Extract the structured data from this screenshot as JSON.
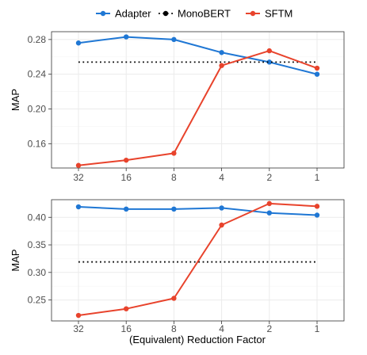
{
  "chart_data": [
    {
      "type": "line",
      "x": [
        "32",
        "16",
        "8",
        "4",
        "2",
        "1"
      ],
      "xlabel": "",
      "ylabel": "MAP",
      "ylim": [
        0.132,
        0.289
      ],
      "yticks": [
        "0.16",
        "0.20",
        "0.24",
        "0.28"
      ],
      "ytick_values": [
        0.16,
        0.2,
        0.24,
        0.28
      ],
      "grid": true,
      "series": [
        {
          "name": "Adapter",
          "color": "#1f77d4",
          "style": "solid",
          "values": [
            0.276,
            0.283,
            0.28,
            0.265,
            0.254,
            0.24
          ]
        },
        {
          "name": "MonoBERT",
          "color": "#000000",
          "style": "dotted",
          "values": [
            0.254,
            0.254,
            0.254,
            0.254,
            0.254,
            0.254
          ]
        },
        {
          "name": "SFTM",
          "color": "#e8432c",
          "style": "solid",
          "values": [
            0.135,
            0.141,
            0.149,
            0.25,
            0.267,
            0.247
          ]
        }
      ]
    },
    {
      "type": "line",
      "x": [
        "32",
        "16",
        "8",
        "4",
        "2",
        "1"
      ],
      "xlabel": "(Equivalent) Reduction Factor",
      "ylabel": "MAP",
      "ylim": [
        0.212,
        0.432
      ],
      "yticks": [
        "0.25",
        "0.30",
        "0.35",
        "0.40"
      ],
      "ytick_values": [
        0.25,
        0.3,
        0.35,
        0.4
      ],
      "grid": true,
      "series": [
        {
          "name": "Adapter",
          "color": "#1f77d4",
          "style": "solid",
          "values": [
            0.419,
            0.415,
            0.415,
            0.417,
            0.408,
            0.404
          ]
        },
        {
          "name": "MonoBERT",
          "color": "#000000",
          "style": "dotted",
          "values": [
            0.319,
            0.319,
            0.319,
            0.319,
            0.319,
            0.319
          ]
        },
        {
          "name": "SFTM",
          "color": "#e8432c",
          "style": "solid",
          "values": [
            0.222,
            0.234,
            0.253,
            0.386,
            0.425,
            0.42
          ]
        }
      ]
    }
  ],
  "legend": {
    "position": "top",
    "items": [
      {
        "label": "Adapter",
        "color": "#1f77d4",
        "style": "solid"
      },
      {
        "label": "MonoBERT",
        "color": "#000000",
        "style": "dotted"
      },
      {
        "label": "SFTM",
        "color": "#e8432c",
        "style": "solid"
      }
    ]
  },
  "colors": {
    "panel_border": "#333333",
    "grid_major": "#ebebeb",
    "grid_minor": "#f5f5f5"
  }
}
